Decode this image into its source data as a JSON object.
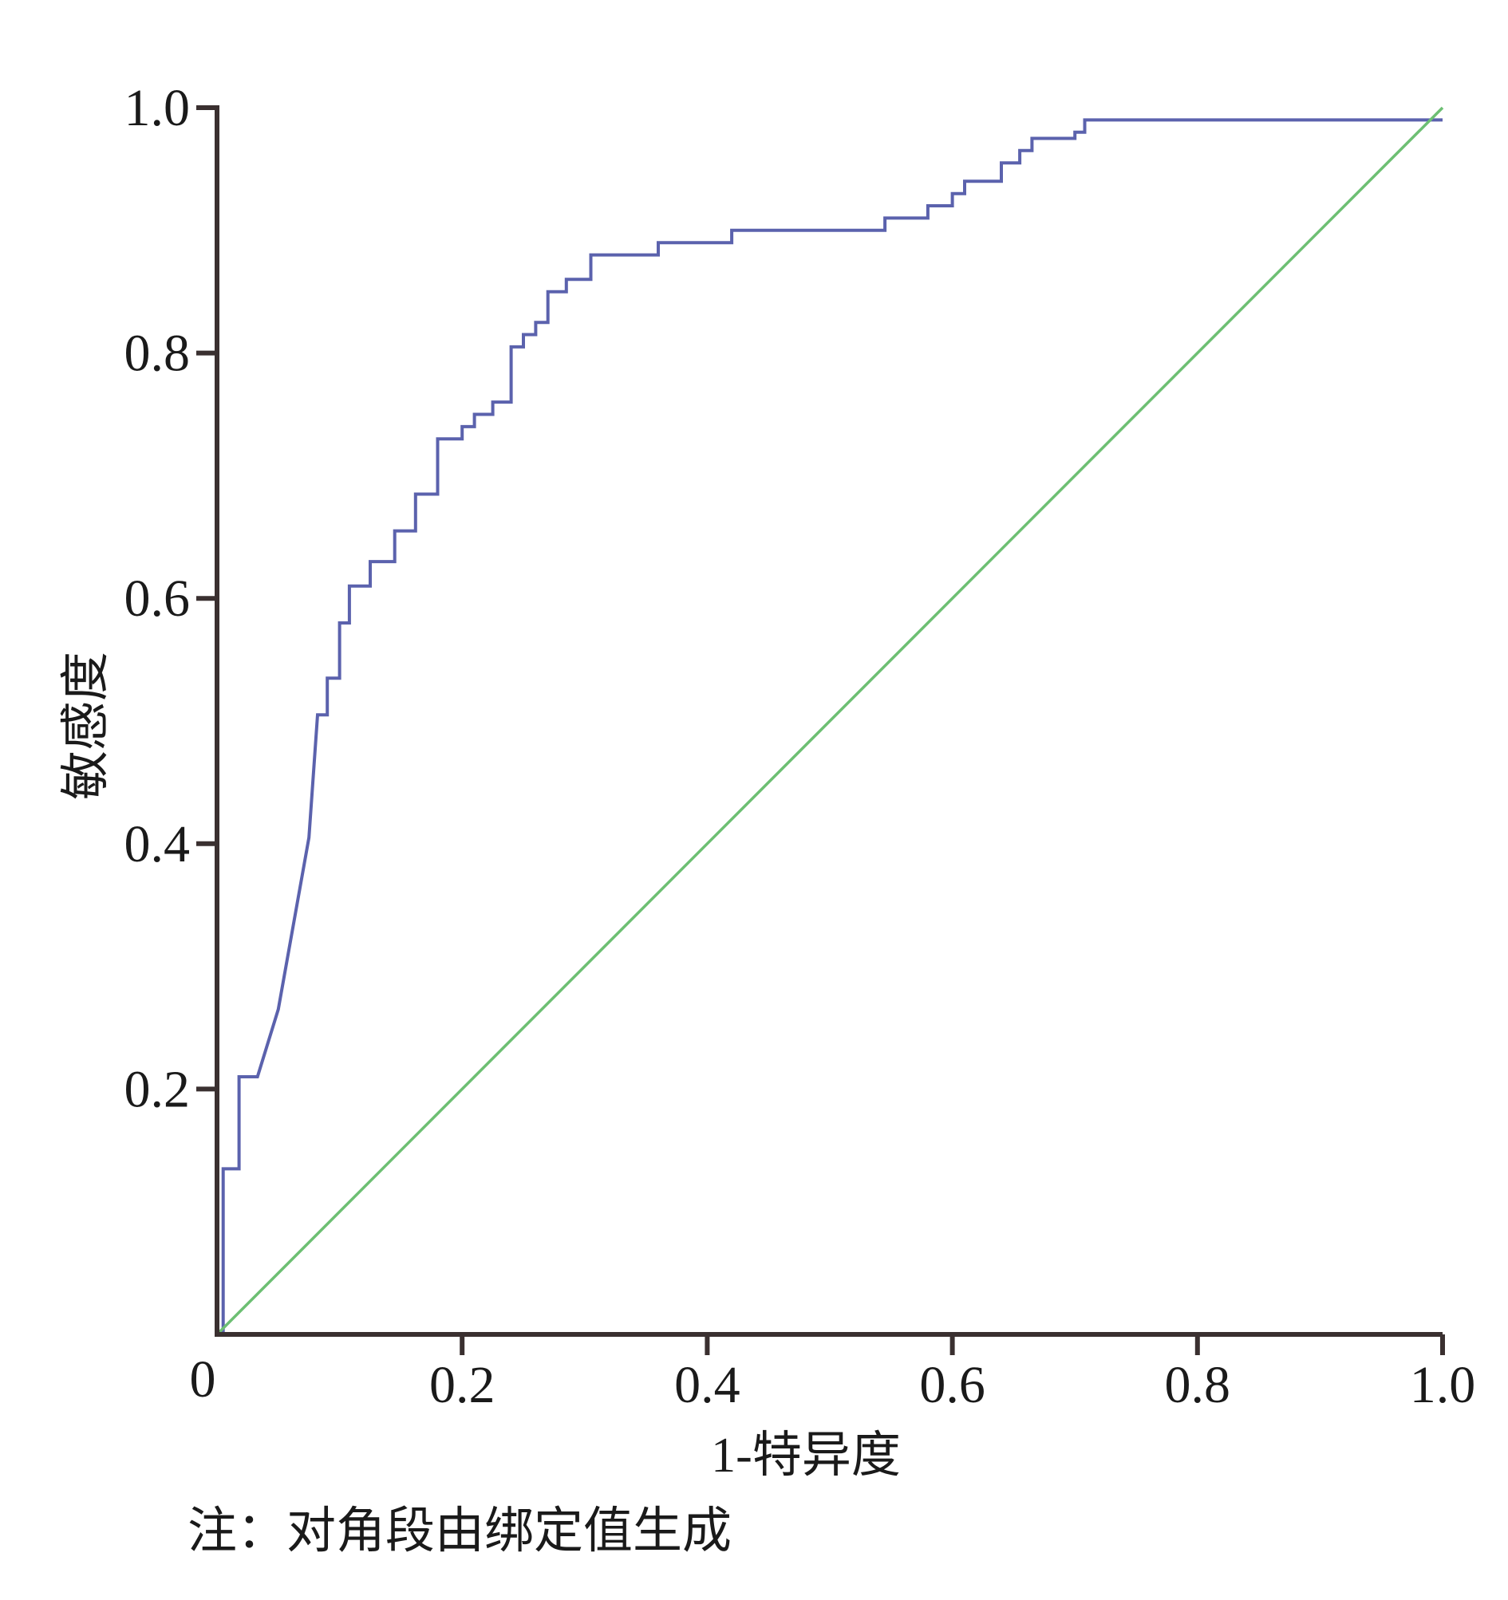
{
  "chart_data": {
    "type": "line",
    "title": "",
    "xlabel": "1-特异度",
    "ylabel": "敏感度",
    "xlim": [
      0,
      1.0
    ],
    "ylim": [
      0,
      1.0
    ],
    "x_origin_label": "0",
    "x_ticks": [
      "0.2",
      "0.4",
      "0.6",
      "0.8",
      "1.0"
    ],
    "y_ticks": [
      "0.2",
      "0.4",
      "0.6",
      "0.8",
      "1.0"
    ],
    "grid": false,
    "legend": "none",
    "note": "注：对角段由绑定值生成",
    "series": [
      {
        "color": "#5b62ad",
        "style": "step",
        "x": [
          0.0,
          0.005,
          0.005,
          0.018,
          0.018,
          0.033,
          0.033,
          0.05,
          0.05,
          0.05,
          0.075,
          0.075,
          0.082,
          0.082,
          0.09,
          0.09,
          0.1,
          0.1,
          0.108,
          0.108,
          0.125,
          0.125,
          0.145,
          0.145,
          0.162,
          0.162,
          0.18,
          0.18,
          0.2,
          0.2,
          0.21,
          0.21,
          0.225,
          0.225,
          0.24,
          0.24,
          0.25,
          0.25,
          0.26,
          0.26,
          0.27,
          0.27,
          0.285,
          0.285,
          0.305,
          0.305,
          0.36,
          0.36,
          0.42,
          0.42,
          0.545,
          0.545,
          0.58,
          0.58,
          0.6,
          0.6,
          0.61,
          0.61,
          0.64,
          0.64,
          0.655,
          0.655,
          0.665,
          0.665,
          0.7,
          0.7,
          0.708,
          0.708,
          0.76,
          0.76,
          1.0
        ],
        "y": [
          0.0,
          0.0,
          0.135,
          0.135,
          0.21,
          0.21,
          0.21,
          0.265,
          0.265,
          0.265,
          0.405,
          0.405,
          0.505,
          0.505,
          0.505,
          0.535,
          0.535,
          0.58,
          0.58,
          0.61,
          0.61,
          0.63,
          0.63,
          0.655,
          0.655,
          0.685,
          0.685,
          0.73,
          0.73,
          0.74,
          0.74,
          0.75,
          0.75,
          0.76,
          0.76,
          0.805,
          0.805,
          0.815,
          0.815,
          0.825,
          0.825,
          0.85,
          0.85,
          0.86,
          0.86,
          0.88,
          0.88,
          0.89,
          0.89,
          0.9,
          0.9,
          0.91,
          0.91,
          0.92,
          0.92,
          0.93,
          0.93,
          0.94,
          0.94,
          0.955,
          0.955,
          0.965,
          0.965,
          0.975,
          0.975,
          0.98,
          0.98,
          0.99,
          0.99,
          0.99,
          0.99
        ]
      },
      {
        "color": "#6dbf73",
        "style": "line",
        "x": [
          0.0,
          1.0
        ],
        "y": [
          0.0,
          1.0
        ]
      }
    ]
  }
}
